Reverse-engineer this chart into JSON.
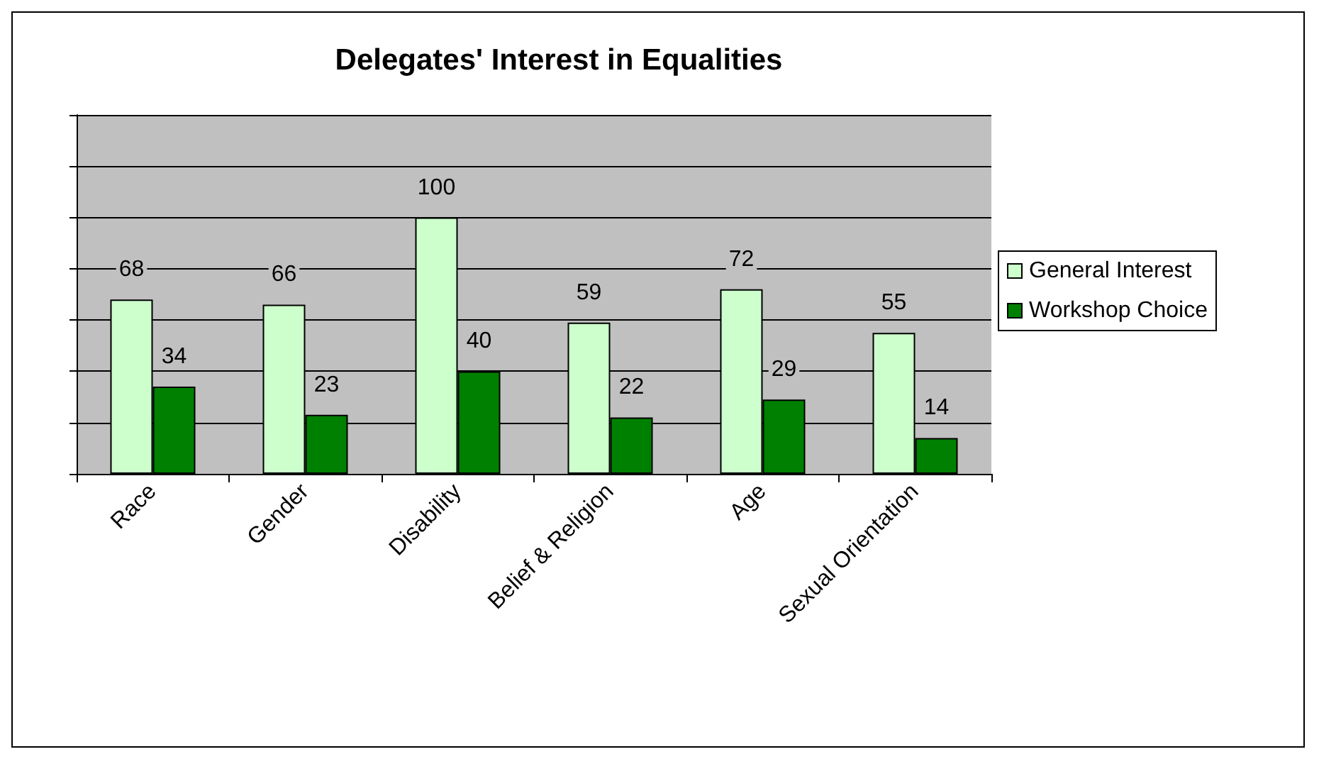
{
  "chart_data": {
    "type": "bar",
    "title": "Delegates' Interest in Equalities",
    "categories": [
      "Race",
      "Gender",
      "Disability",
      "Belief & Religion",
      "Age",
      "Sexual Orientation"
    ],
    "series": [
      {
        "name": "General Interest",
        "color": "#ccffcc",
        "values": [
          68,
          66,
          100,
          59,
          72,
          55
        ]
      },
      {
        "name": "Workshop Choice",
        "color": "#008000",
        "values": [
          34,
          23,
          40,
          22,
          29,
          14
        ]
      }
    ],
    "ylim": [
      0,
      140
    ],
    "yticks": [
      {
        "value": 0,
        "label": null
      },
      {
        "value": 20,
        "label": null
      },
      {
        "value": 40,
        "label": null
      },
      {
        "value": 60,
        "label": null
      },
      {
        "value": 80,
        "label": null
      },
      {
        "value": 100,
        "label": null
      },
      {
        "value": 120,
        "label": null
      },
      {
        "value": 140,
        "label": null
      }
    ],
    "tick_labels": "x",
    "grid": "y",
    "legend": "right",
    "data_labels": true
  }
}
